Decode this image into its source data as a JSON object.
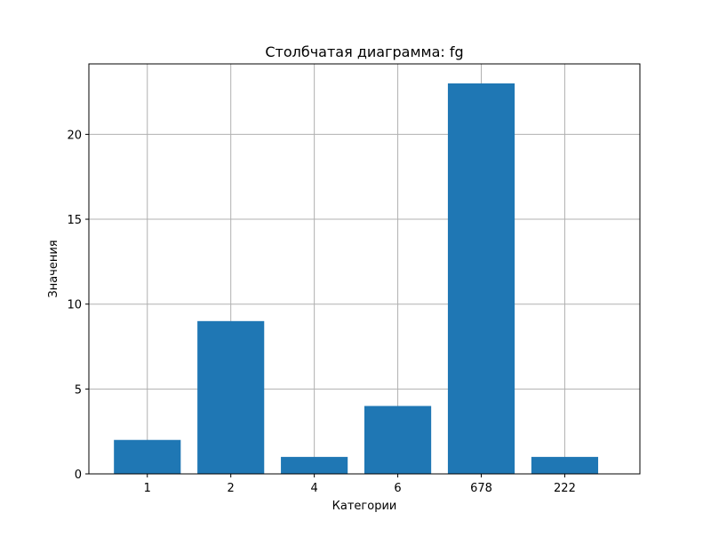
{
  "chart_data": {
    "type": "bar",
    "title": "Столбчатая диаграмма: fg",
    "xlabel": "Категории",
    "ylabel": "Значения",
    "categories": [
      "1",
      "2",
      "4",
      "6",
      "678",
      "222"
    ],
    "values": [
      2,
      9,
      1,
      4,
      23,
      1
    ],
    "ylim": [
      0,
      24.15
    ],
    "yticks": [
      0,
      5,
      10,
      15,
      20
    ],
    "grid": true,
    "bar_color": "#1f77b4",
    "grid_color": "#b0b0b0"
  }
}
